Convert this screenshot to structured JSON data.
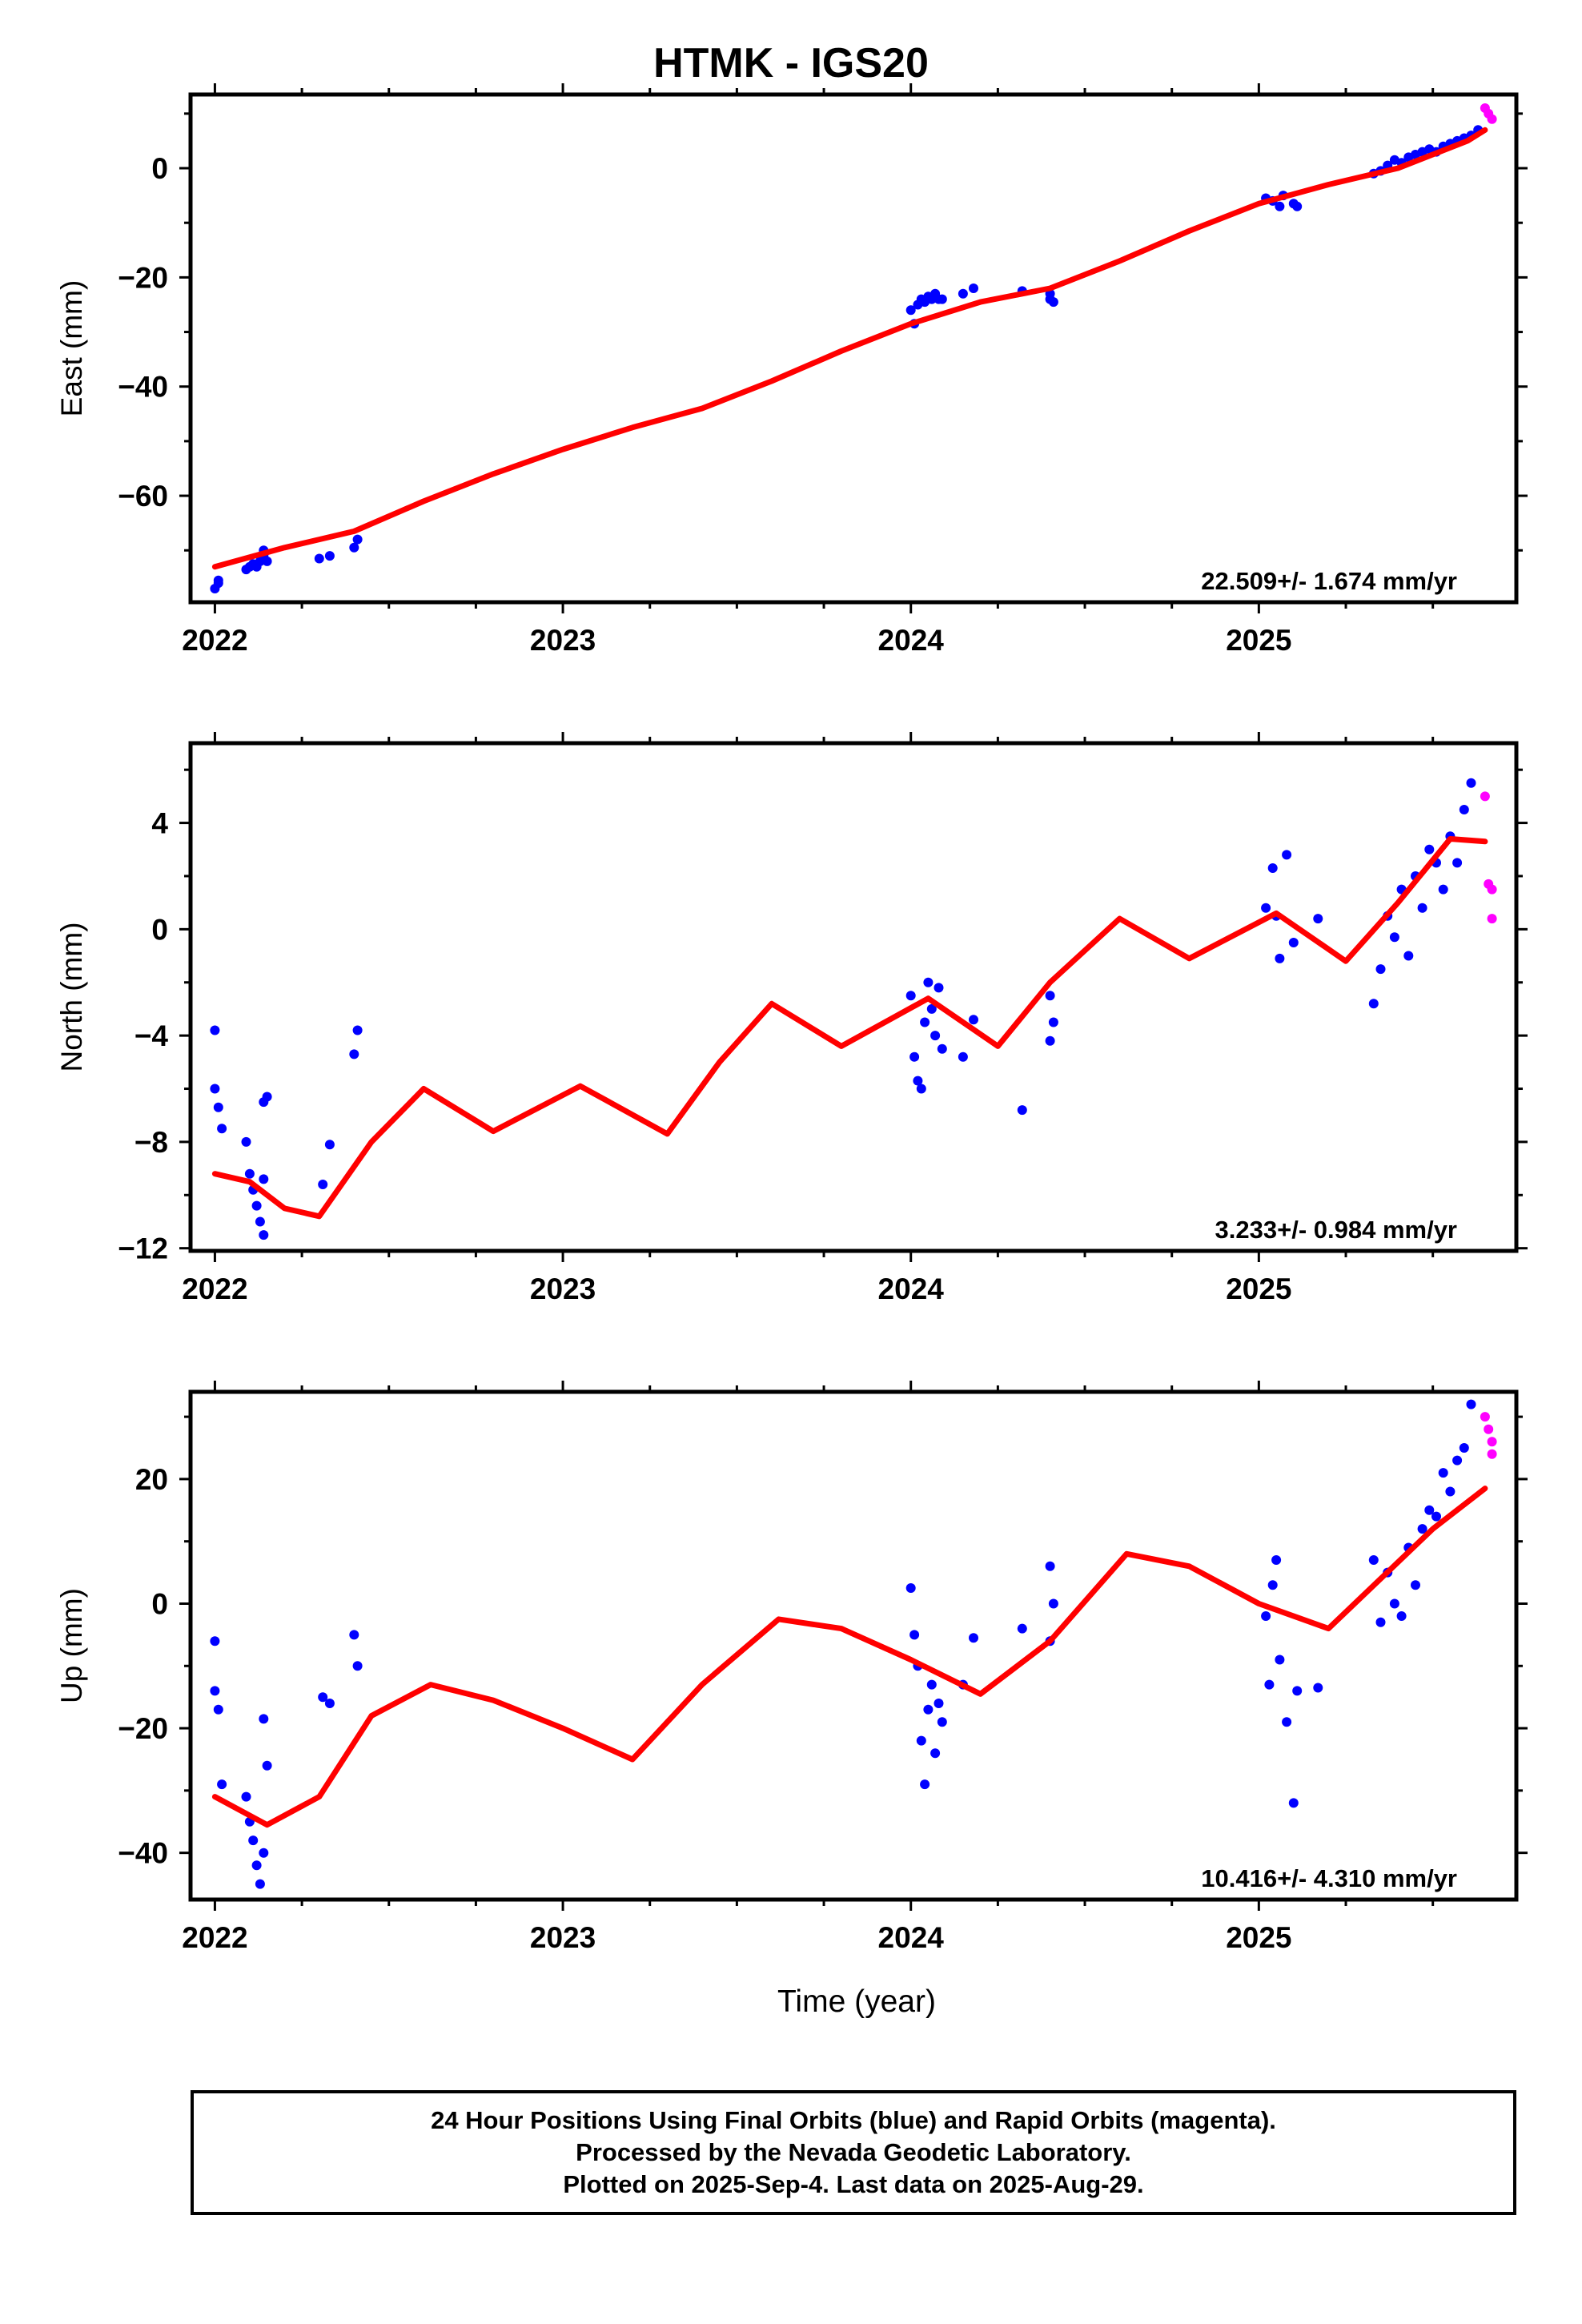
{
  "title": "HTMK - IGS20",
  "xlabel": "Time (year)",
  "colors": {
    "final_points": "#0000ff",
    "rapid_points": "#ff00ff",
    "model_fit": "#ff0000",
    "frame": "#000000"
  },
  "caption": {
    "line1": "24 Hour Positions Using Final Orbits (blue) and Rapid Orbits (magenta).",
    "line2": "Processed by the Nevada Geodetic Laboratory.",
    "line3": "Plotted on 2025-Sep-4. Last data on 2025-Aug-29."
  },
  "chart_data": [
    {
      "type": "scatter",
      "name": "east",
      "title": "HTMK - IGS20",
      "ylabel": "East (mm)",
      "xlabel": "",
      "xlim": [
        2021.93,
        2025.74
      ],
      "ylim": [
        -79.5,
        13.5
      ],
      "xticks": [
        2022,
        2023,
        2024,
        2025
      ],
      "yticks": [
        0,
        -20,
        -40,
        -60
      ],
      "rate_label": "22.509+/- 1.674 mm/yr",
      "series": [
        {
          "name": "Final Orbits",
          "color": "#0000ff",
          "x": [
            2022.0,
            2022.01,
            2022.01,
            2022.09,
            2022.1,
            2022.11,
            2022.12,
            2022.13,
            2022.14,
            2022.14,
            2022.15,
            2022.3,
            2022.33,
            2022.4,
            2022.41,
            2024.0,
            2024.01,
            2024.02,
            2024.03,
            2024.04,
            2024.05,
            2024.06,
            2024.07,
            2024.08,
            2024.09,
            2024.15,
            2024.18,
            2024.32,
            2024.4,
            2024.4,
            2024.41,
            2025.02,
            2025.04,
            2025.06,
            2025.07,
            2025.1,
            2025.11,
            2025.33,
            2025.35,
            2025.37,
            2025.39,
            2025.41,
            2025.43,
            2025.45,
            2025.47,
            2025.49,
            2025.51,
            2025.53,
            2025.55,
            2025.57,
            2025.59,
            2025.61,
            2025.63
          ],
          "y": [
            -77,
            -76,
            -75.5,
            -73.5,
            -73,
            -72.5,
            -73,
            -72,
            -71,
            -70,
            -72,
            -71.5,
            -71,
            -69.5,
            -68,
            -26,
            -28.5,
            -25,
            -24,
            -24.5,
            -23.5,
            -24,
            -23,
            -24,
            -24,
            -23,
            -22,
            -22.5,
            -24,
            -23,
            -24.5,
            -5.5,
            -6,
            -7,
            -5,
            -6.5,
            -7,
            -1,
            -0.5,
            0.5,
            1.5,
            1,
            2,
            2.5,
            3,
            3.5,
            3,
            4,
            4.5,
            5,
            5.5,
            6,
            7
          ]
        },
        {
          "name": "Rapid Orbits",
          "color": "#ff00ff",
          "x": [
            2025.65,
            2025.66,
            2025.67
          ],
          "y": [
            11,
            10,
            9
          ]
        },
        {
          "name": "Model Fit",
          "color": "#ff0000",
          "style": "line",
          "x": [
            2022.0,
            2022.2,
            2022.4,
            2022.6,
            2022.8,
            2023.0,
            2023.2,
            2023.4,
            2023.6,
            2023.8,
            2024.0,
            2024.2,
            2024.4,
            2024.6,
            2024.8,
            2025.0,
            2025.2,
            2025.4,
            2025.6,
            2025.65
          ],
          "y": [
            -73,
            -69.5,
            -66.5,
            -61,
            -56,
            -51.5,
            -47.5,
            -44,
            -39,
            -33.5,
            -28.5,
            -24.5,
            -22,
            -17,
            -11.5,
            -6.5,
            -3,
            0,
            5,
            7
          ]
        }
      ]
    },
    {
      "type": "scatter",
      "name": "north",
      "ylabel": "North (mm)",
      "xlabel": "",
      "xlim": [
        2021.93,
        2025.74
      ],
      "ylim": [
        -12.1,
        7.0
      ],
      "xticks": [
        2022,
        2023,
        2024,
        2025
      ],
      "yticks": [
        4,
        0,
        -4,
        -8,
        -12
      ],
      "rate_label": "3.233+/- 0.984 mm/yr",
      "series": [
        {
          "name": "Final Orbits",
          "color": "#0000ff",
          "x": [
            2022.0,
            2022.0,
            2022.01,
            2022.02,
            2022.09,
            2022.1,
            2022.11,
            2022.12,
            2022.13,
            2022.14,
            2022.14,
            2022.14,
            2022.15,
            2022.31,
            2022.33,
            2022.4,
            2022.41,
            2024.0,
            2024.01,
            2024.02,
            2024.03,
            2024.04,
            2024.05,
            2024.06,
            2024.07,
            2024.08,
            2024.09,
            2024.15,
            2024.18,
            2024.32,
            2024.4,
            2024.4,
            2024.41,
            2025.02,
            2025.04,
            2025.05,
            2025.06,
            2025.08,
            2025.1,
            2025.17,
            2025.33,
            2025.35,
            2025.37,
            2025.39,
            2025.41,
            2025.43,
            2025.45,
            2025.47,
            2025.49,
            2025.51,
            2025.53,
            2025.55,
            2025.57,
            2025.59,
            2025.61
          ],
          "y": [
            -3.8,
            -6.0,
            -6.7,
            -7.5,
            -8.0,
            -9.2,
            -9.8,
            -10.4,
            -11.0,
            -11.5,
            -6.5,
            -9.4,
            -6.3,
            -9.6,
            -8.1,
            -4.7,
            -3.8,
            -2.5,
            -4.8,
            -5.7,
            -6.0,
            -3.5,
            -2.0,
            -3.0,
            -4.0,
            -2.2,
            -4.5,
            -4.8,
            -3.4,
            -6.8,
            -2.5,
            -4.2,
            -3.5,
            0.8,
            2.3,
            0.5,
            -1.1,
            2.8,
            -0.5,
            0.4,
            -2.8,
            -1.5,
            0.5,
            -0.3,
            1.5,
            -1.0,
            2.0,
            0.8,
            3.0,
            2.5,
            1.5,
            3.5,
            2.5,
            4.5,
            5.5
          ]
        },
        {
          "name": "Rapid Orbits",
          "color": "#ff00ff",
          "x": [
            2025.65,
            2025.66,
            2025.67,
            2025.67
          ],
          "y": [
            5.0,
            1.7,
            1.5,
            0.4
          ]
        },
        {
          "name": "Model Fit",
          "color": "#ff0000",
          "style": "line",
          "x": [
            2022.0,
            2022.1,
            2022.2,
            2022.3,
            2022.45,
            2022.6,
            2022.8,
            2023.05,
            2023.3,
            2023.45,
            2023.6,
            2023.8,
            2024.05,
            2024.25,
            2024.4,
            2024.6,
            2024.8,
            2025.05,
            2025.25,
            2025.4,
            2025.55,
            2025.65
          ],
          "y": [
            -9.2,
            -9.5,
            -10.5,
            -10.8,
            -8.0,
            -6.0,
            -7.6,
            -5.9,
            -7.7,
            -5.0,
            -2.8,
            -4.4,
            -2.6,
            -4.4,
            -2.0,
            0.4,
            -1.1,
            0.6,
            -1.2,
            1.0,
            3.4,
            3.3
          ]
        }
      ]
    },
    {
      "type": "scatter",
      "name": "up",
      "ylabel": "Up (mm)",
      "xlabel": "Time (year)",
      "xlim": [
        2021.93,
        2025.74
      ],
      "ylim": [
        -47.5,
        34.0
      ],
      "xticks": [
        2022,
        2023,
        2024,
        2025
      ],
      "yticks": [
        20,
        0,
        -20,
        -40
      ],
      "rate_label": "10.416+/- 4.310 mm/yr",
      "series": [
        {
          "name": "Final Orbits",
          "color": "#0000ff",
          "x": [
            2022.0,
            2022.0,
            2022.01,
            2022.02,
            2022.09,
            2022.1,
            2022.11,
            2022.12,
            2022.13,
            2022.14,
            2022.14,
            2022.15,
            2022.31,
            2022.33,
            2022.4,
            2022.41,
            2024.0,
            2024.01,
            2024.02,
            2024.03,
            2024.04,
            2024.05,
            2024.06,
            2024.07,
            2024.08,
            2024.09,
            2024.15,
            2024.18,
            2024.32,
            2024.4,
            2024.4,
            2024.41,
            2025.02,
            2025.03,
            2025.04,
            2025.05,
            2025.06,
            2025.08,
            2025.1,
            2025.11,
            2025.17,
            2025.33,
            2025.35,
            2025.37,
            2025.39,
            2025.41,
            2025.43,
            2025.45,
            2025.47,
            2025.49,
            2025.51,
            2025.53,
            2025.55,
            2025.57,
            2025.59,
            2025.61
          ],
          "y": [
            -6,
            -14,
            -17,
            -29,
            -31,
            -35,
            -38,
            -42,
            -45,
            -40,
            -18.5,
            -26,
            -15,
            -16,
            -5,
            -10,
            2.5,
            -5,
            -10,
            -22,
            -29,
            -17,
            -13,
            -24,
            -16,
            -19,
            -13,
            -5.5,
            -4,
            -6,
            6,
            0,
            -2,
            -13,
            3,
            7,
            -9,
            -19,
            -32,
            -14,
            -13.5,
            7,
            -3,
            5,
            0,
            -2,
            9,
            3,
            12,
            15,
            14,
            21,
            18,
            23,
            25,
            32
          ]
        },
        {
          "name": "Rapid Orbits",
          "color": "#ff00ff",
          "x": [
            2025.65,
            2025.66,
            2025.67,
            2025.67
          ],
          "y": [
            30,
            28,
            26,
            24
          ]
        },
        {
          "name": "Model Fit",
          "color": "#ff0000",
          "style": "line",
          "x": [
            2022.0,
            2022.15,
            2022.3,
            2022.45,
            2022.62,
            2022.8,
            2023.0,
            2023.2,
            2023.4,
            2023.62,
            2023.8,
            2024.0,
            2024.2,
            2024.4,
            2024.62,
            2024.8,
            2025.0,
            2025.2,
            2025.35,
            2025.5,
            2025.65
          ],
          "y": [
            -31,
            -35.5,
            -31,
            -18,
            -13,
            -15.5,
            -20,
            -25,
            -13,
            -2.5,
            -4,
            -9,
            -14.5,
            -6,
            8,
            6,
            0,
            -4,
            4,
            12,
            18.5
          ]
        }
      ]
    }
  ]
}
